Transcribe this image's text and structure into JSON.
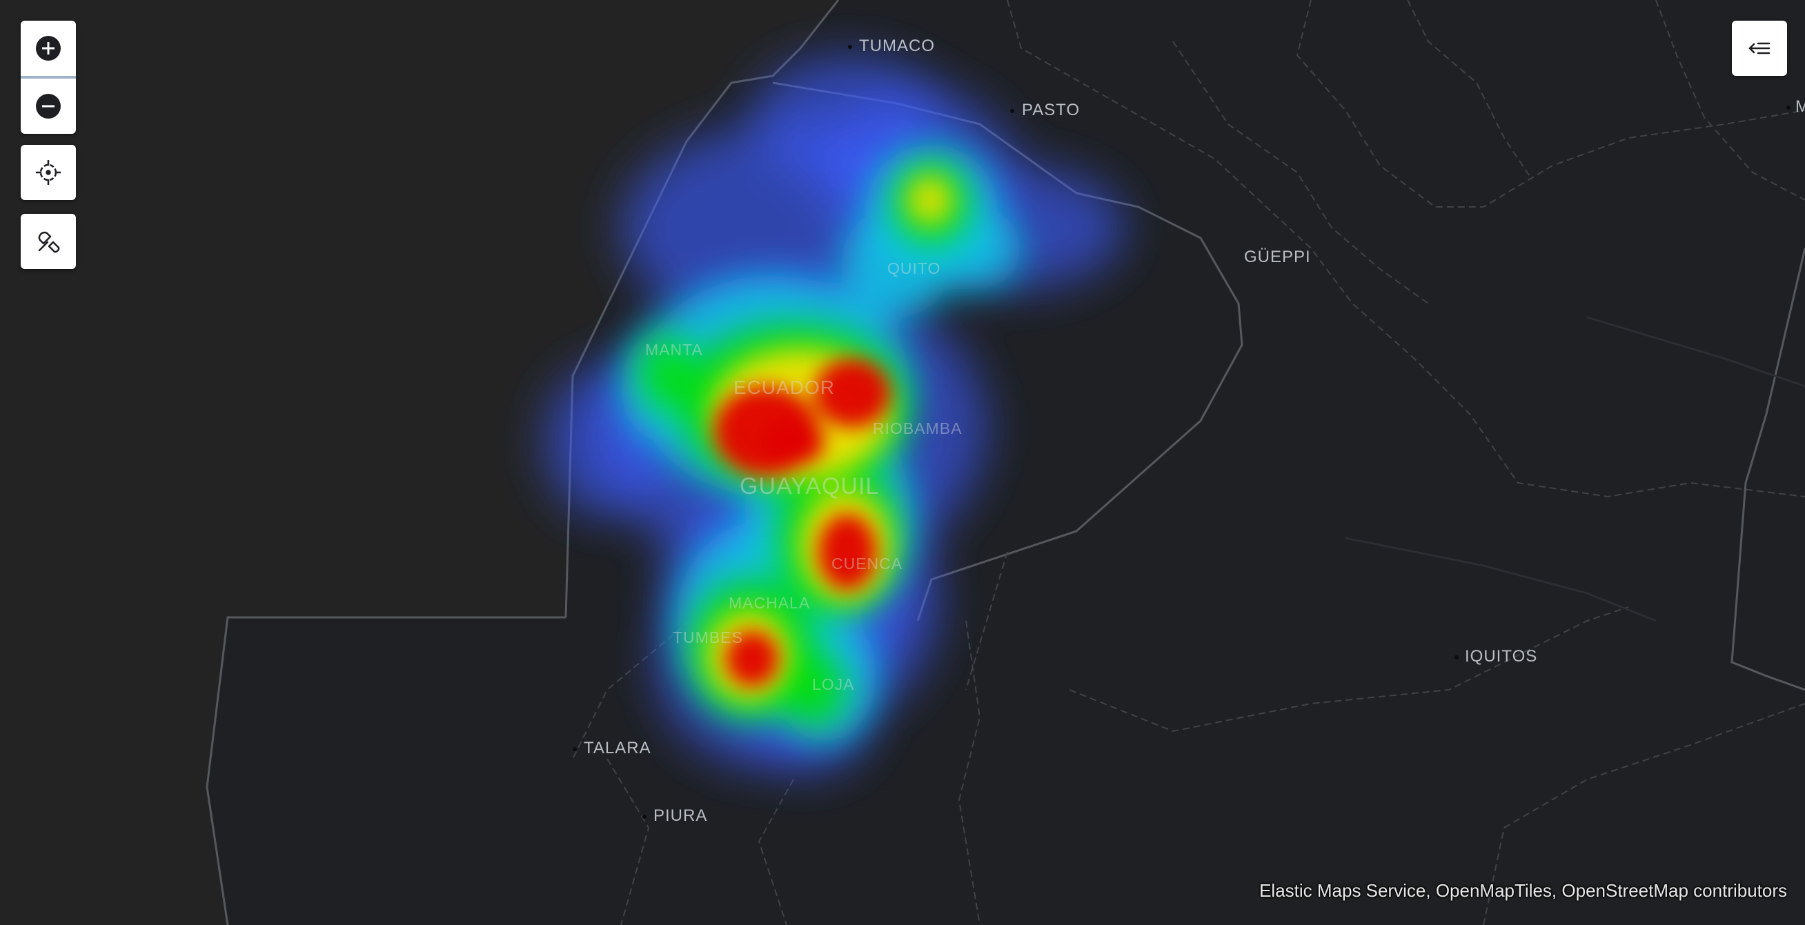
{
  "map": {
    "cities": [
      {
        "key": "tumaco",
        "label": "TUMACO"
      },
      {
        "key": "pasto",
        "label": "PASTO"
      },
      {
        "key": "gueppi",
        "label": "GÜEPPI"
      },
      {
        "key": "iquitos",
        "label": "IQUITOS"
      },
      {
        "key": "talara",
        "label": "TALARA"
      },
      {
        "key": "piura",
        "label": "PIURA"
      },
      {
        "key": "edge",
        "label": "M"
      }
    ],
    "inner_labels": [
      {
        "key": "quito",
        "label": "QUITO"
      },
      {
        "key": "manta",
        "label": "MANTA"
      },
      {
        "key": "ecuador",
        "label": "ECUADOR"
      },
      {
        "key": "riobamba",
        "label": "RIOBAMBA"
      },
      {
        "key": "guayaquil",
        "label": "GUAYAQUIL"
      },
      {
        "key": "cuenca",
        "label": "CUENCA"
      },
      {
        "key": "machala",
        "label": "MACHALA"
      },
      {
        "key": "tumbes",
        "label": "TUMBES"
      },
      {
        "key": "loja",
        "label": "LOJA"
      }
    ],
    "colors": {
      "water": "#232323",
      "land": "#1e2023",
      "border": "#55595e",
      "heat_low": "#3d5cff",
      "heat_mid": "#00e000",
      "heat_high": "#e00000"
    }
  },
  "controls": {
    "icons": [
      "zoom-in-icon",
      "zoom-out-icon",
      "locate-icon",
      "draw-tool-icon",
      "layers-panel-icon"
    ]
  },
  "attribution": "Elastic Maps Service, OpenMapTiles, OpenStreetMap contributors"
}
